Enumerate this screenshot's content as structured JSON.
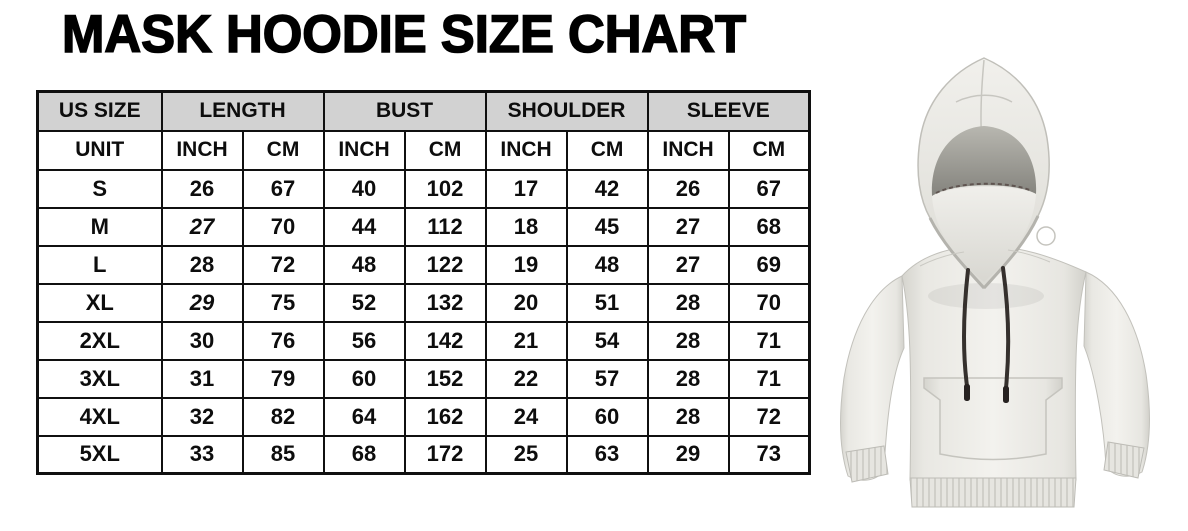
{
  "page": {
    "background_color": "#ffffff"
  },
  "chart_data": {
    "type": "table",
    "title": "MASK HOODIE SIZE CHART",
    "header_groups": [
      {
        "label": "US SIZE",
        "span": 1
      },
      {
        "label": "LENGTH",
        "span": 2
      },
      {
        "label": "BUST",
        "span": 2
      },
      {
        "label": "SHOULDER",
        "span": 2
      },
      {
        "label": "SLEEVE",
        "span": 2
      }
    ],
    "unit_row": [
      "UNIT",
      "INCH",
      "CM",
      "INCH",
      "CM",
      "INCH",
      "CM",
      "INCH",
      "CM"
    ],
    "rows": [
      {
        "size": "S",
        "values": [
          26,
          67,
          40,
          102,
          17,
          42,
          26,
          67
        ]
      },
      {
        "size": "M",
        "values": [
          27,
          70,
          44,
          112,
          18,
          45,
          27,
          68
        ]
      },
      {
        "size": "L",
        "values": [
          28,
          72,
          48,
          122,
          19,
          48,
          27,
          69
        ]
      },
      {
        "size": "XL",
        "values": [
          29,
          75,
          52,
          132,
          20,
          51,
          28,
          70
        ]
      },
      {
        "size": "2XL",
        "values": [
          30,
          76,
          56,
          142,
          21,
          54,
          28,
          71
        ]
      },
      {
        "size": "3XL",
        "values": [
          31,
          79,
          60,
          152,
          22,
          57,
          28,
          71
        ]
      },
      {
        "size": "4XL",
        "values": [
          32,
          82,
          64,
          162,
          24,
          60,
          28,
          72
        ]
      },
      {
        "size": "5XL",
        "values": [
          33,
          85,
          68,
          172,
          25,
          63,
          29,
          73
        ]
      }
    ],
    "italic_cells": [
      {
        "row": "M",
        "col": 0
      },
      {
        "row": "XL",
        "col": 0
      }
    ]
  },
  "styles": {
    "colors": {
      "header_bg": "#d2d2d2",
      "border": "#101010",
      "cell_bg": "#ffffff",
      "text": "#0d0d0d"
    }
  },
  "product_image": {
    "name": "mask-hoodie-front-view",
    "alt": "White pullover hoodie with built-in face mask, hood up, front view",
    "colors": {
      "fabric": "#eceae5",
      "fabric_shadow": "#d3d2cc",
      "hood_inner": "#8f8e88",
      "mask": "#e8e7e2",
      "drawstring": "#35302d"
    }
  }
}
